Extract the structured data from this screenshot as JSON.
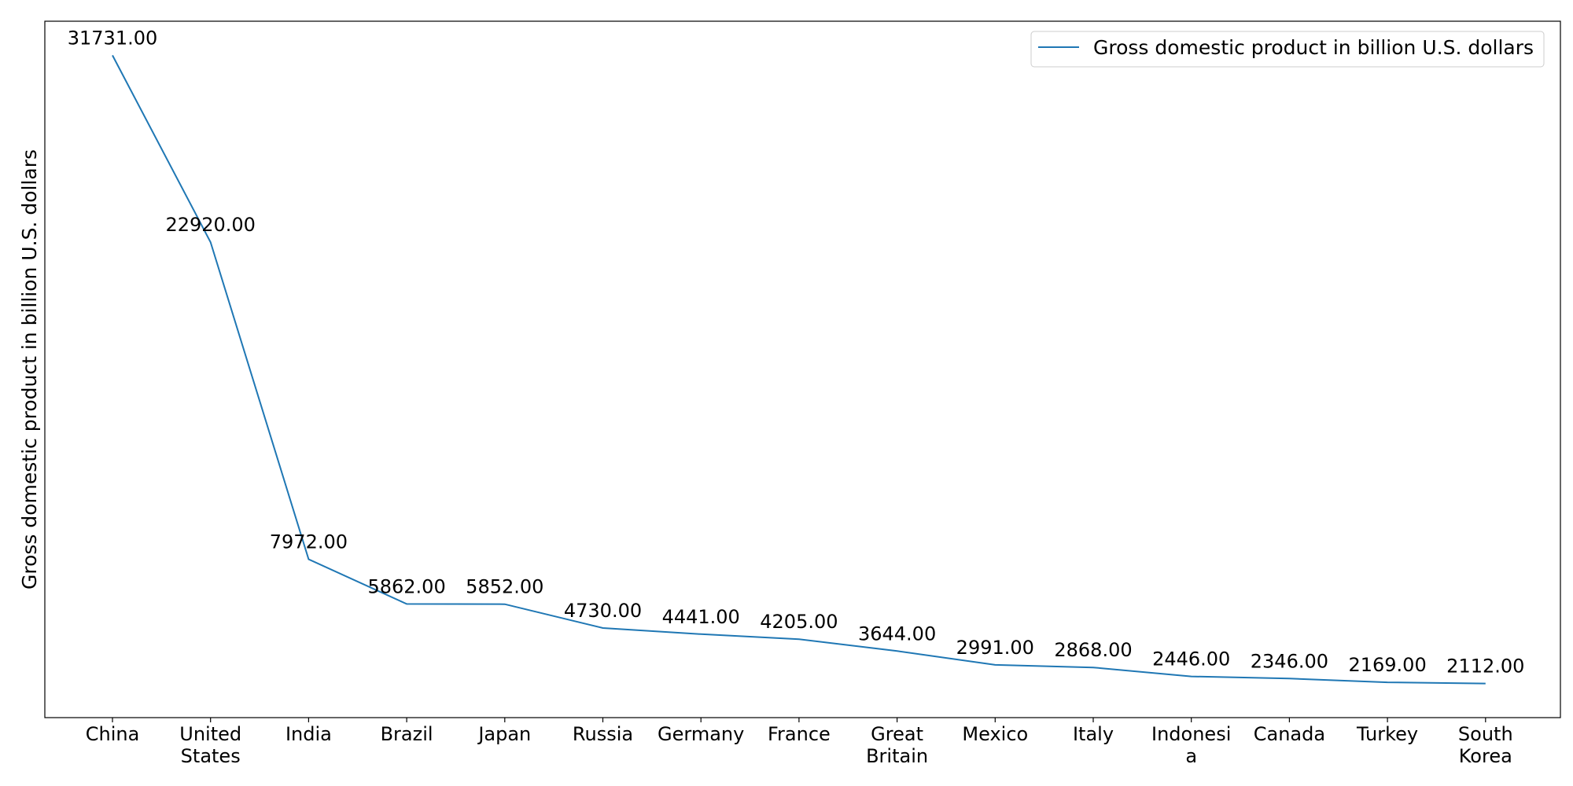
{
  "chart_data": {
    "type": "line",
    "title": "",
    "xlabel": "",
    "ylabel": "Gross domestic product in billion U.S. dollars",
    "categories": [
      [
        "China"
      ],
      [
        "United",
        "States"
      ],
      [
        "India"
      ],
      [
        "Brazil"
      ],
      [
        "Japan"
      ],
      [
        "Russia"
      ],
      [
        "Germany"
      ],
      [
        "France"
      ],
      [
        "Great",
        "Britain"
      ],
      [
        "Mexico"
      ],
      [
        "Italy"
      ],
      [
        "Indonesi",
        "a"
      ],
      [
        "Canada"
      ],
      [
        "Turkey"
      ],
      [
        "South",
        "Korea"
      ]
    ],
    "series": [
      {
        "name": "Gross domestic product in billion U.S. dollars",
        "color": "#1f77b4",
        "values": [
          31731,
          22920,
          7972,
          5862,
          5852,
          4730,
          4441,
          4205,
          3644,
          2991,
          2868,
          2446,
          2346,
          2169,
          2112
        ],
        "data_labels": [
          "31731.00",
          "22920.00",
          "7972.00",
          "5862.00",
          "5852.00",
          "4730.00",
          "4441.00",
          "4205.00",
          "3644.00",
          "2991.00",
          "2868.00",
          "2446.00",
          "2346.00",
          "2169.00",
          "2112.00"
        ]
      }
    ],
    "ylim": [
      505,
      33338
    ],
    "y_ticks_visible": false,
    "grid": false,
    "legend_position": "top-right"
  }
}
